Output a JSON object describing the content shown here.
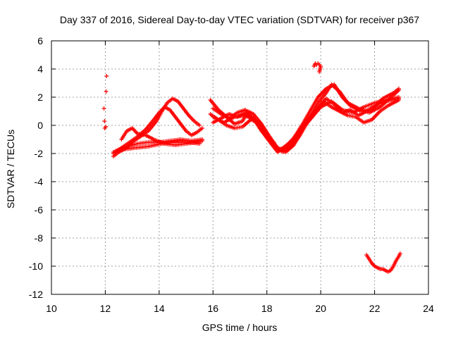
{
  "chart_data": {
    "type": "scatter",
    "title": "Day 337 of 2016, Sidereal Day-to-day VTEC variation (SDTVAR) for receiver p367",
    "xlabel": "GPS time / hours",
    "ylabel": "SDTVAR / TECUs",
    "xlim": [
      10,
      24
    ],
    "ylim": [
      -12,
      6
    ],
    "xticks": [
      "10",
      "12",
      "14",
      "16",
      "18",
      "20",
      "22",
      "24"
    ],
    "yticks": [
      "6",
      "4",
      "2",
      "0",
      "-2",
      "-4",
      "-6",
      "-8",
      "-10",
      "-12"
    ],
    "grid": true,
    "marker": "plus",
    "color": "#ff0000",
    "series": [
      {
        "name": "isolated-12h",
        "points": [
          [
            11.95,
            1.2
          ],
          [
            11.97,
            0.3
          ],
          [
            11.98,
            -0.2
          ],
          [
            12.02,
            -0.1
          ],
          [
            12.03,
            2.4
          ],
          [
            12.05,
            3.5
          ]
        ]
      },
      {
        "name": "t1",
        "points": [
          [
            12.3,
            -2.2
          ],
          [
            12.5,
            -1.9
          ],
          [
            12.8,
            -1.6
          ],
          [
            13.0,
            -1.2
          ],
          [
            13.3,
            -0.8
          ],
          [
            13.6,
            -0.4
          ],
          [
            13.9,
            0.3
          ],
          [
            14.1,
            1.0
          ],
          [
            14.3,
            1.6
          ],
          [
            14.5,
            1.9
          ],
          [
            14.7,
            1.7
          ],
          [
            14.9,
            1.2
          ],
          [
            15.1,
            0.7
          ],
          [
            15.3,
            0.3
          ],
          [
            15.5,
            0.0
          ]
        ]
      },
      {
        "name": "t2",
        "points": [
          [
            12.3,
            -2.0
          ],
          [
            12.6,
            -1.6
          ],
          [
            12.9,
            -1.2
          ],
          [
            13.2,
            -0.8
          ],
          [
            13.5,
            -0.3
          ],
          [
            13.8,
            0.4
          ],
          [
            14.0,
            0.9
          ],
          [
            14.2,
            1.3
          ],
          [
            14.4,
            1.1
          ],
          [
            14.6,
            0.6
          ],
          [
            14.8,
            0.1
          ],
          [
            15.0,
            -0.4
          ],
          [
            15.2,
            -0.7
          ],
          [
            15.4,
            -0.5
          ],
          [
            15.6,
            -0.2
          ]
        ]
      },
      {
        "name": "t3",
        "points": [
          [
            12.4,
            -1.8
          ],
          [
            12.8,
            -1.5
          ],
          [
            13.2,
            -1.3
          ],
          [
            13.6,
            -1.2
          ],
          [
            14.0,
            -1.2
          ],
          [
            14.4,
            -1.1
          ],
          [
            14.8,
            -1.0
          ],
          [
            15.2,
            -1.1
          ],
          [
            15.6,
            -1.0
          ]
        ]
      },
      {
        "name": "t4",
        "points": [
          [
            12.6,
            -1.0
          ],
          [
            12.8,
            -0.4
          ],
          [
            13.0,
            -0.2
          ],
          [
            13.2,
            -0.6
          ],
          [
            13.5,
            -0.7
          ],
          [
            13.8,
            -1.0
          ],
          [
            14.2,
            -1.3
          ],
          [
            14.6,
            -1.4
          ],
          [
            15.0,
            -1.3
          ],
          [
            15.4,
            -1.2
          ],
          [
            15.6,
            -1.1
          ]
        ]
      },
      {
        "name": "t5",
        "points": [
          [
            12.3,
            -1.9
          ],
          [
            12.7,
            -1.7
          ],
          [
            13.1,
            -1.6
          ],
          [
            13.6,
            -1.5
          ],
          [
            14.1,
            -1.3
          ],
          [
            14.6,
            -1.2
          ],
          [
            15.1,
            -1.2
          ],
          [
            15.5,
            -1.3
          ]
        ]
      },
      {
        "name": "t6",
        "points": [
          [
            15.9,
            1.8
          ],
          [
            16.2,
            1.1
          ],
          [
            16.5,
            0.6
          ],
          [
            16.8,
            0.1
          ],
          [
            17.1,
            0.3
          ],
          [
            17.3,
            1.0
          ],
          [
            17.5,
            0.8
          ],
          [
            17.8,
            0.1
          ],
          [
            18.1,
            -0.8
          ],
          [
            18.4,
            -1.6
          ],
          [
            18.7,
            -1.9
          ],
          [
            19.0,
            -1.4
          ],
          [
            19.3,
            -0.4
          ],
          [
            19.6,
            0.6
          ],
          [
            19.9,
            1.6
          ],
          [
            20.2,
            2.3
          ],
          [
            20.4,
            2.9
          ],
          [
            20.7,
            2.4
          ],
          [
            21.0,
            1.6
          ],
          [
            21.4,
            1.2
          ],
          [
            21.8,
            0.9
          ],
          [
            22.2,
            1.3
          ],
          [
            22.5,
            1.8
          ],
          [
            22.9,
            2.5
          ]
        ]
      },
      {
        "name": "t7",
        "points": [
          [
            15.9,
            0.8
          ],
          [
            16.2,
            0.4
          ],
          [
            16.5,
            0.0
          ],
          [
            16.8,
            -0.2
          ],
          [
            17.1,
            -0.1
          ],
          [
            17.4,
            0.4
          ],
          [
            17.7,
            0.2
          ],
          [
            18.0,
            -0.6
          ],
          [
            18.3,
            -1.5
          ],
          [
            18.6,
            -1.9
          ],
          [
            18.9,
            -1.5
          ],
          [
            19.2,
            -0.8
          ],
          [
            19.5,
            0.2
          ],
          [
            19.8,
            1.0
          ],
          [
            20.1,
            1.7
          ],
          [
            20.4,
            1.3
          ],
          [
            20.7,
            1.0
          ],
          [
            21.0,
            0.7
          ],
          [
            21.3,
            0.6
          ],
          [
            21.6,
            0.2
          ],
          [
            21.9,
            0.4
          ],
          [
            22.2,
            1.0
          ],
          [
            22.5,
            1.4
          ],
          [
            22.9,
            1.8
          ]
        ]
      },
      {
        "name": "t8",
        "points": [
          [
            16.0,
            0.2
          ],
          [
            16.3,
            0.5
          ],
          [
            16.6,
            0.8
          ],
          [
            16.9,
            0.6
          ],
          [
            17.2,
            0.9
          ],
          [
            17.5,
            0.5
          ],
          [
            17.8,
            -0.4
          ],
          [
            18.1,
            -1.1
          ],
          [
            18.4,
            -1.7
          ],
          [
            18.7,
            -1.6
          ],
          [
            19.0,
            -0.9
          ],
          [
            19.3,
            0.0
          ],
          [
            19.6,
            1.0
          ],
          [
            19.9,
            2.0
          ],
          [
            20.2,
            2.6
          ],
          [
            20.5,
            2.9
          ],
          [
            20.8,
            2.0
          ],
          [
            21.1,
            1.4
          ],
          [
            21.5,
            1.0
          ],
          [
            21.9,
            1.1
          ],
          [
            22.3,
            1.9
          ],
          [
            22.7,
            2.3
          ],
          [
            22.9,
            2.6
          ]
        ]
      },
      {
        "name": "t9",
        "points": [
          [
            16.0,
            1.2
          ],
          [
            16.3,
            0.8
          ],
          [
            16.6,
            0.5
          ],
          [
            16.9,
            0.9
          ],
          [
            17.2,
            1.1
          ],
          [
            17.5,
            0.4
          ],
          [
            17.8,
            -0.2
          ],
          [
            18.1,
            -1.0
          ],
          [
            18.4,
            -1.8
          ],
          [
            18.7,
            -1.7
          ],
          [
            19.0,
            -1.1
          ],
          [
            19.3,
            -0.2
          ],
          [
            19.6,
            0.6
          ],
          [
            19.9,
            1.2
          ],
          [
            20.2,
            1.9
          ],
          [
            20.5,
            1.5
          ],
          [
            20.8,
            0.9
          ],
          [
            21.1,
            1.1
          ],
          [
            21.4,
            0.7
          ],
          [
            21.7,
            1.0
          ],
          [
            22.0,
            1.4
          ],
          [
            22.4,
            1.7
          ],
          [
            22.9,
            1.9
          ]
        ]
      },
      {
        "name": "t10",
        "points": [
          [
            16.0,
            0.6
          ],
          [
            16.4,
            0.2
          ],
          [
            16.8,
            0.6
          ],
          [
            17.2,
            0.7
          ],
          [
            17.6,
            0.3
          ],
          [
            18.0,
            -0.9
          ],
          [
            18.4,
            -1.9
          ],
          [
            18.8,
            -1.3
          ],
          [
            19.2,
            -0.5
          ],
          [
            19.6,
            0.4
          ],
          [
            20.0,
            1.3
          ],
          [
            20.4,
            1.7
          ],
          [
            20.8,
            1.1
          ],
          [
            21.2,
            0.9
          ],
          [
            21.6,
            1.3
          ],
          [
            22.0,
            1.6
          ],
          [
            22.4,
            1.8
          ],
          [
            22.9,
            2.0
          ]
        ]
      },
      {
        "name": "spike-20h",
        "points": [
          [
            19.75,
            4.2
          ],
          [
            19.8,
            4.4
          ],
          [
            19.85,
            4.3
          ],
          [
            19.9,
            4.4
          ],
          [
            19.95,
            4.3
          ],
          [
            20.0,
            4.2
          ],
          [
            19.95,
            3.8
          ]
        ]
      },
      {
        "name": "late-segment",
        "points": [
          [
            21.7,
            -9.2
          ],
          [
            21.8,
            -9.5
          ],
          [
            21.9,
            -9.8
          ],
          [
            22.0,
            -10.0
          ],
          [
            22.1,
            -10.1
          ],
          [
            22.2,
            -10.2
          ],
          [
            22.3,
            -10.2
          ],
          [
            22.4,
            -10.3
          ],
          [
            22.5,
            -10.4
          ],
          [
            22.6,
            -10.3
          ],
          [
            22.7,
            -10.0
          ],
          [
            22.8,
            -9.6
          ],
          [
            22.9,
            -9.3
          ],
          [
            22.95,
            -9.1
          ]
        ]
      }
    ]
  }
}
